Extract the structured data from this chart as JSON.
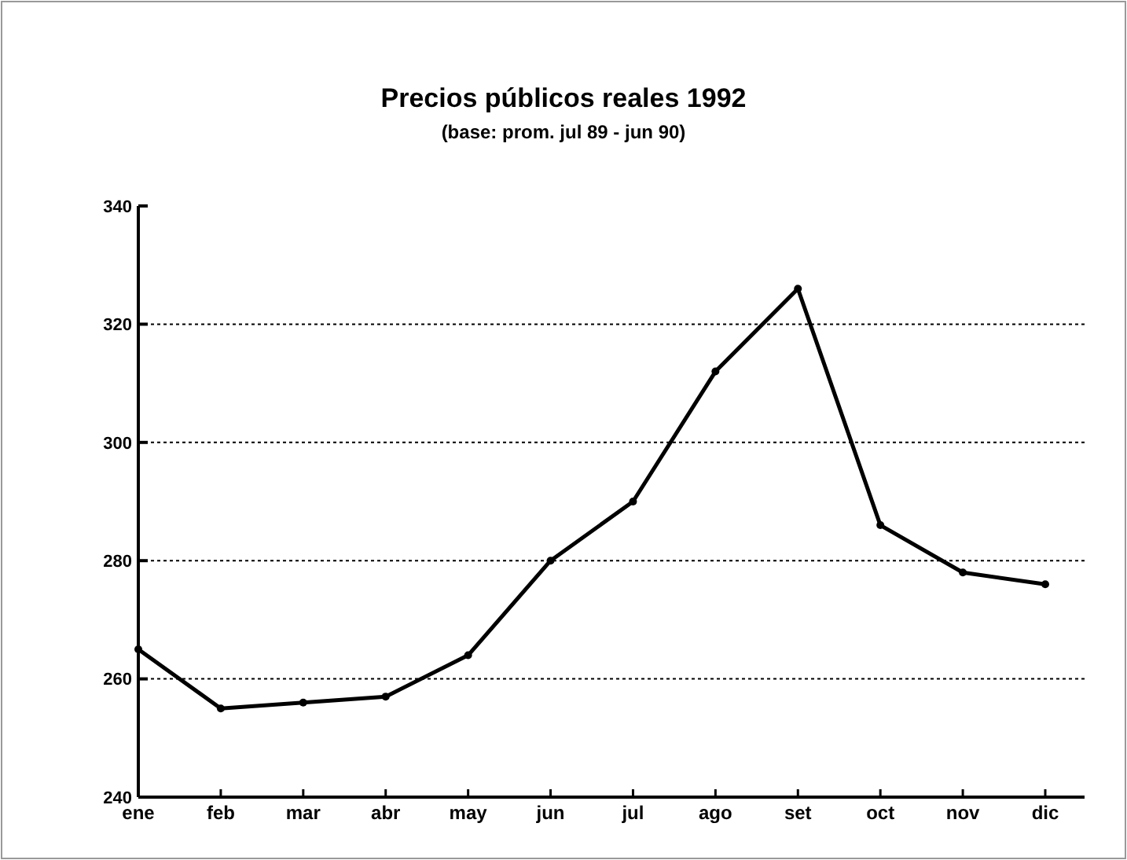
{
  "chart_data": {
    "type": "line",
    "title": "Precios públicos reales 1992",
    "subtitle": "(base: prom. jul 89 - jun 90)",
    "categories": [
      "ene",
      "feb",
      "mar",
      "abr",
      "may",
      "jun",
      "jul",
      "ago",
      "set",
      "oct",
      "nov",
      "dic"
    ],
    "series": [
      {
        "color": "#000000",
        "values": [
          265,
          255,
          256,
          257,
          264,
          280,
          290,
          312,
          326,
          286,
          278,
          276
        ]
      }
    ],
    "ylim": [
      240,
      340
    ],
    "yticks": [
      240,
      260,
      280,
      300,
      320,
      340
    ],
    "grid": "y",
    "marker": "circle",
    "line_style": "solid"
  }
}
